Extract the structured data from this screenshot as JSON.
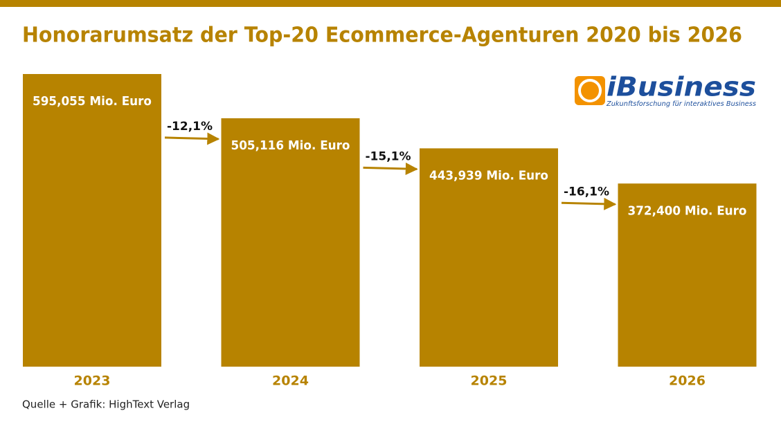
{
  "chart_data": {
    "type": "bar",
    "title": "Honorarumsatz der Top-20 Ecommerce-Agenturen 2020 bis 2026",
    "categories": [
      "2023",
      "2024",
      "2025",
      "2026"
    ],
    "values": [
      595.055,
      505.116,
      443.939,
      372.4
    ],
    "value_labels": [
      "595,055 Mio. Euro",
      "505,116 Mio. Euro",
      "443,939 Mio. Euro",
      "372,400 Mio. Euro"
    ],
    "annotations": [
      "-12,1%",
      "-15,1%",
      "-16,1%"
    ],
    "color": "#b78300",
    "source": "Quelle + Grafik: HighText Verlag"
  },
  "logo": {
    "name": "iBusiness",
    "tagline": "Zukunftsforschung für interaktives Business"
  }
}
